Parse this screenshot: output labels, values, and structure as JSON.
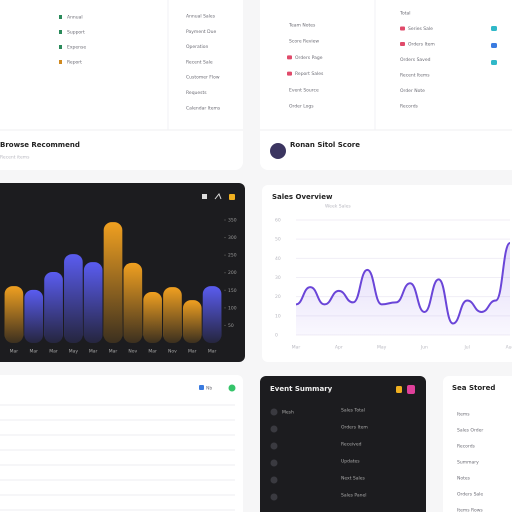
{
  "top_left": {
    "col1": [
      "Annual",
      "Support",
      "Expense",
      "Report"
    ],
    "col2": [
      "Annual Sales",
      "Payment Due",
      "Operation",
      "Recent Sale",
      "Customer Flow",
      "Requests",
      "Calendar Items"
    ],
    "title": "Browse Recommend",
    "subtitle": "Recent items"
  },
  "top_right": {
    "col1": [
      "Team Notes",
      "Score Review",
      "Orders Page",
      "Report Sales",
      "Event Source",
      "Order Logs"
    ],
    "col2": [
      "Total",
      "Series Sale",
      "Orders Item",
      "Orders Saved",
      "Recent Items",
      "Order Note",
      "Records"
    ],
    "title": "Ronan Sitol Score"
  },
  "chart_data": [
    {
      "type": "bar",
      "categories": [
        "Mar",
        "Mar",
        "Mar",
        "May",
        "Mar",
        "Mar",
        "Nov",
        "Mar",
        "Nov",
        "Mar",
        "Mar"
      ],
      "values": [
        162,
        151,
        202,
        253,
        230,
        344,
        228,
        145,
        159,
        122,
        162
      ],
      "colors": [
        "#f0a020",
        "#5a5cf0",
        "#5a5cf0",
        "#5a5cf0",
        "#5a5cf0",
        "#f0a020",
        "#f0a020",
        "#f0a020",
        "#f0a020",
        "#f0a020",
        "#5a5cf0"
      ],
      "ylim": [
        0,
        350
      ],
      "yticks": [
        50,
        100,
        150,
        200,
        250,
        300,
        350
      ]
    },
    {
      "type": "line",
      "title": "Sales Overview",
      "subtitle": "Week Sales",
      "categories": [
        "Mar",
        null,
        null,
        "Apr",
        null,
        null,
        "May",
        null,
        null,
        "Jun",
        null,
        null,
        "Jul",
        null,
        null,
        "Aug"
      ],
      "values": [
        16,
        25,
        16,
        23,
        17,
        34,
        16,
        17,
        27,
        12,
        29,
        6,
        18,
        12,
        18,
        48
      ],
      "color": "#6a45d8",
      "ylim": [
        0,
        60
      ],
      "yticks": [
        0,
        10,
        20,
        30,
        40,
        50,
        60
      ],
      "grid": true
    }
  ],
  "bottom_left": {
    "badge": "Nb"
  },
  "event_summary": {
    "title": "Event Summary",
    "lead": "Mesh",
    "items": [
      "Sales Total",
      "Orders Item",
      "Received",
      "Updates",
      "Next Sales",
      "Sales Panel"
    ]
  },
  "side_list": {
    "title": "Sea Stored",
    "items": [
      "Items",
      "Sales Order",
      "Records",
      "Summary",
      "Notes",
      "Orders Sale",
      "Items Rows"
    ]
  }
}
